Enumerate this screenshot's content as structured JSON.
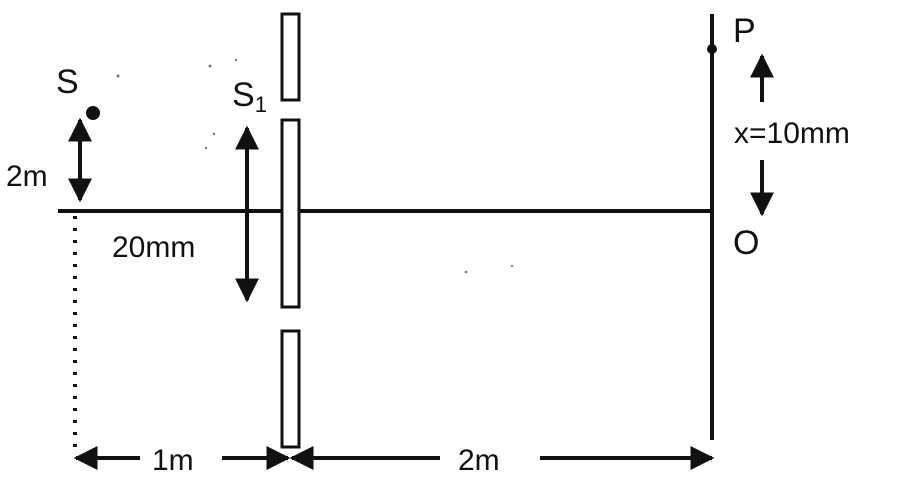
{
  "labels": {
    "source": "S",
    "slit_main": "S",
    "slit_sub": "1",
    "point_p": "P",
    "point_o": "O",
    "source_height": "2m",
    "slit_span": "20mm",
    "screen_offset": "x=10mm",
    "distance_source_to_slits": "1m",
    "distance_slits_to_screen": "2m"
  },
  "colors": {
    "ink": "#111111",
    "background": "#ffffff"
  }
}
